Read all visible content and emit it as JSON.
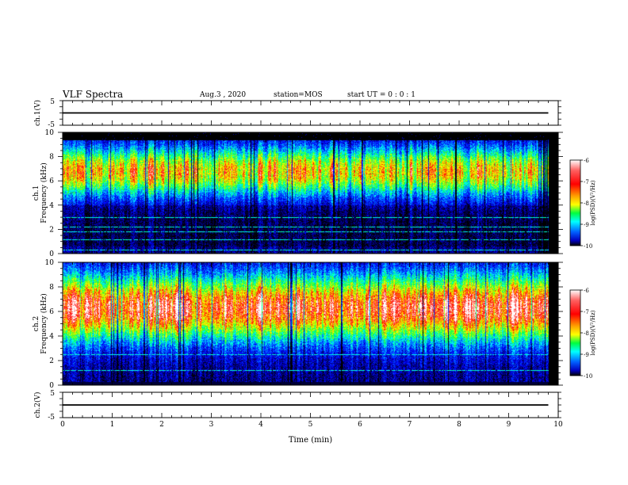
{
  "header": {
    "title": "VLF Spectra",
    "date": "Aug.3 , 2020",
    "station": "station=MOS",
    "start_ut": "start UT = 0 : 0 : 1"
  },
  "colors": {
    "scale": [
      "#ffffff",
      "#ff5050",
      "#ff0000",
      "#ff8c00",
      "#ffff00",
      "#00ff00",
      "#00ffff",
      "#0080ff",
      "#0000ff",
      "#000060",
      "#000000"
    ]
  },
  "chart_data": [
    {
      "type": "line",
      "panel": "ch1-voltage",
      "ylabel": "ch.1(V)",
      "ylim": [
        -5,
        5
      ],
      "yticks": [
        "5",
        "-5"
      ],
      "series": [
        {
          "values": [
            [
              0,
              0
            ],
            [
              9.8,
              0
            ]
          ]
        }
      ]
    },
    {
      "type": "heatmap",
      "panel": "ch1-spectrogram",
      "ylabel_line1": "ch.1",
      "ylabel_line2": "Frequency (kHz)",
      "ylim": [
        0,
        10
      ],
      "yticks": [
        "0",
        "2",
        "4",
        "6",
        "8",
        "10"
      ],
      "xlim": [
        0,
        10
      ],
      "data_end_min": 9.8,
      "band_center_khz": 6.8,
      "band_halfwidth_khz": 2.2,
      "noise_floor_khz": 9.4,
      "horizontal_lines_khz": [
        0.3,
        1.2,
        1.8,
        2.2,
        3.0
      ],
      "colorbar": {
        "label": "log(PSD)(V²/Hz)",
        "ticks": [
          "-6",
          "-7",
          "-8",
          "-9",
          "-10"
        ],
        "range": [
          -10,
          -6
        ]
      }
    },
    {
      "type": "heatmap",
      "panel": "ch2-spectrogram",
      "ylabel_line1": "ch.2",
      "ylabel_line2": "Frequency (kHz)",
      "ylim": [
        0,
        10
      ],
      "yticks": [
        "0",
        "2",
        "4",
        "6",
        "8",
        "10"
      ],
      "xlim": [
        0,
        10
      ],
      "data_end_min": 9.8,
      "band_center_khz": 6.3,
      "band_halfwidth_khz": 3.0,
      "noise_floor_khz": 10,
      "horizontal_lines_khz": [
        1.2,
        2.5
      ],
      "colorbar": {
        "label": "log(PSD)(V²/Hz)",
        "ticks": [
          "-6",
          "-7",
          "-8",
          "-9",
          "-10"
        ],
        "range": [
          -10,
          -6
        ]
      }
    },
    {
      "type": "line",
      "panel": "ch2-voltage",
      "ylabel": "ch.2(V)",
      "ylim": [
        -5,
        5
      ],
      "yticks": [
        "5",
        "-5"
      ],
      "series": [
        {
          "values": [
            [
              0,
              0
            ],
            [
              9.8,
              0
            ]
          ]
        }
      ]
    }
  ],
  "xaxis": {
    "label": "Time (min)",
    "ticks": [
      "0",
      "1",
      "2",
      "3",
      "4",
      "5",
      "6",
      "7",
      "8",
      "9",
      "10"
    ],
    "range": [
      0,
      10
    ]
  }
}
